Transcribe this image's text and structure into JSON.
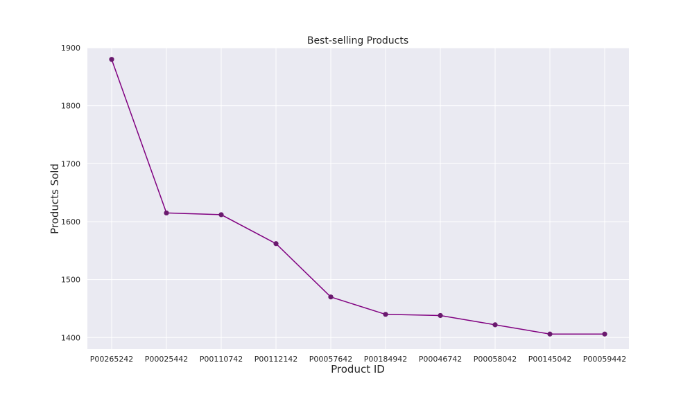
{
  "chart_data": {
    "type": "line",
    "title": "Best-selling Products",
    "xlabel": "Product ID",
    "ylabel": "Products Sold",
    "categories": [
      "P00265242",
      "P00025442",
      "P00110742",
      "P00112142",
      "P00057642",
      "P00184942",
      "P00046742",
      "P00058042",
      "P00145042",
      "P00059442"
    ],
    "series": [
      {
        "name": "Products Sold",
        "values": [
          1880,
          1615,
          1612,
          1562,
          1470,
          1440,
          1438,
          1422,
          1406,
          1406
        ]
      }
    ],
    "ylim": [
      1380,
      1900
    ],
    "yticks": [
      1400,
      1500,
      1600,
      1700,
      1800,
      1900
    ],
    "grid": true,
    "line_color": "#800080",
    "marker_color": "#6a1a6e",
    "background_color": "#eaeaf2"
  }
}
